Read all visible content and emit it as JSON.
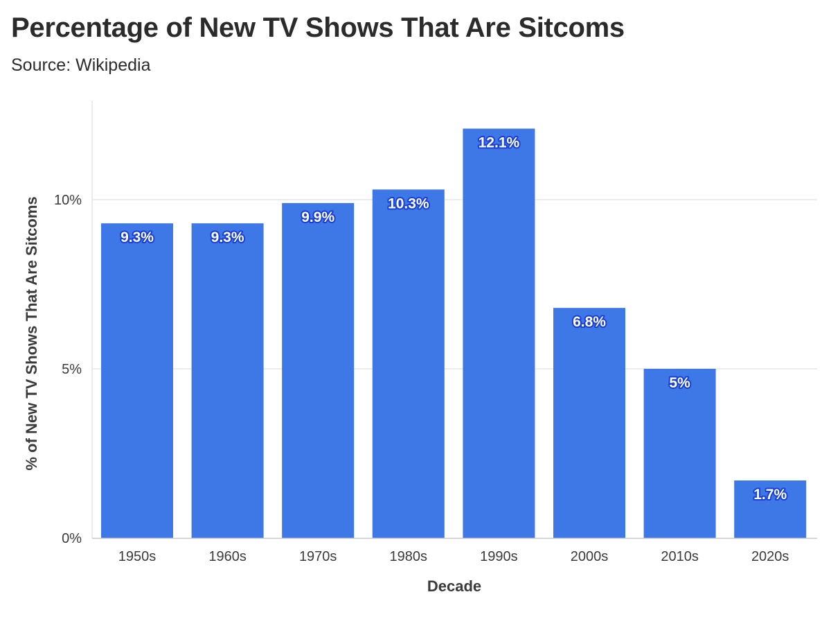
{
  "header": {
    "title": "Percentage of New TV Shows That Are Sitcoms",
    "subtitle": "Source: Wikipedia"
  },
  "colors": {
    "bar": "#3d78e6",
    "gridline": "#e6e6e6",
    "axis": "#c8c8c8",
    "label_outline": "#1a3fd6"
  },
  "chart_data": {
    "type": "bar",
    "title": "Percentage of New TV Shows That Are Sitcoms",
    "subtitle": "Source: Wikipedia",
    "xlabel": "Decade",
    "ylabel": "% of New TV Shows That Are Sitcoms",
    "categories": [
      "1950s",
      "1960s",
      "1970s",
      "1980s",
      "1990s",
      "2000s",
      "2010s",
      "2020s"
    ],
    "values": [
      9.3,
      9.3,
      9.9,
      10.3,
      12.1,
      6.8,
      5.0,
      1.7
    ],
    "data_labels": [
      "9.3%",
      "9.3%",
      "9.9%",
      "10.3%",
      "12.1%",
      "6.8%",
      "5%",
      "1.7%"
    ],
    "yticks": [
      0,
      5,
      10
    ],
    "ytick_labels": [
      "0%",
      "5%",
      "10%"
    ],
    "ylim": [
      0,
      12.6
    ],
    "grid": true,
    "legend": "none"
  }
}
